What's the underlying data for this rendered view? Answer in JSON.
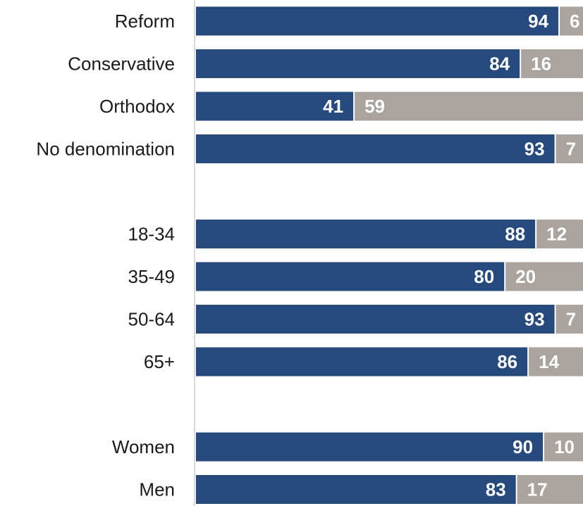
{
  "chart_data": {
    "type": "bar",
    "orientation": "horizontal",
    "stacked": true,
    "categories": [
      "Reform",
      "Conservative",
      "Orthodox",
      "No denomination",
      "18-34",
      "35-49",
      "50-64",
      "65+",
      "Women",
      "Men"
    ],
    "groups": [
      [
        "Reform",
        "Conservative",
        "Orthodox",
        "No denomination"
      ],
      [
        "18-34",
        "35-49",
        "50-64",
        "65+"
      ],
      [
        "Women",
        "Men"
      ]
    ],
    "series": [
      {
        "values": [
          94,
          84,
          41,
          93,
          88,
          80,
          93,
          86,
          90,
          83
        ],
        "color": "#264a7d"
      },
      {
        "values": [
          6,
          16,
          59,
          7,
          12,
          20,
          7,
          14,
          10,
          17
        ],
        "color": "#aba49e"
      }
    ],
    "xlim": [
      0,
      100
    ],
    "grid": false,
    "legend": "none"
  }
}
